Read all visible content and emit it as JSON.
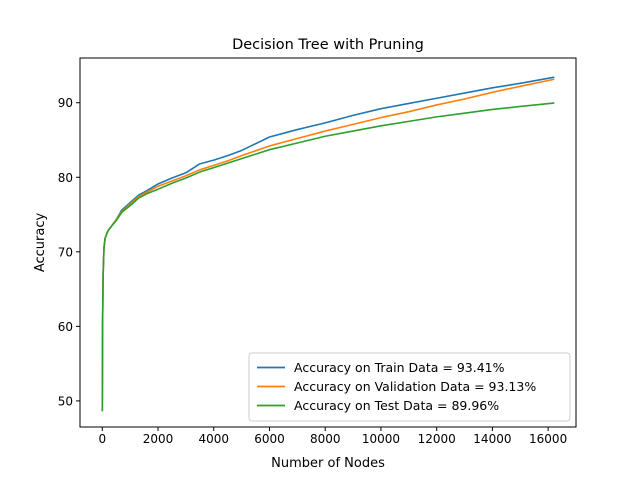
{
  "chart_data": {
    "type": "line",
    "title": "Decision Tree with Pruning",
    "xlabel": "Number of Nodes",
    "ylabel": "Accuracy",
    "xlim": [
      -800,
      17000
    ],
    "ylim": [
      46.5,
      96.0
    ],
    "xticks": [
      0,
      2000,
      4000,
      6000,
      8000,
      10000,
      12000,
      14000,
      16000
    ],
    "yticks": [
      50,
      60,
      70,
      80,
      90
    ],
    "legend_position": "lower-right",
    "grid": false,
    "series": [
      {
        "name": "Accuracy on Train Data = 93.41%",
        "color": "#1f77b4",
        "x": [
          0,
          10,
          30,
          60,
          100,
          200,
          300,
          500,
          700,
          1000,
          1300,
          1600,
          2000,
          2500,
          3000,
          3500,
          4000,
          4500,
          5000,
          6000,
          7000,
          8000,
          9000,
          10000,
          11000,
          12000,
          13000,
          14000,
          15000,
          16200
        ],
        "y": [
          48.7,
          60.0,
          67.0,
          70.5,
          71.8,
          72.8,
          73.3,
          74.3,
          75.6,
          76.6,
          77.6,
          78.2,
          79.1,
          79.9,
          80.6,
          81.8,
          82.3,
          82.9,
          83.6,
          85.4,
          86.4,
          87.3,
          88.3,
          89.2,
          89.9,
          90.6,
          91.3,
          92.0,
          92.6,
          93.41
        ]
      },
      {
        "name": "Accuracy on Validation Data = 93.13%",
        "color": "#ff7f0e",
        "x": [
          0,
          10,
          30,
          60,
          100,
          200,
          300,
          500,
          700,
          1000,
          1300,
          1600,
          2000,
          2500,
          3000,
          3500,
          4000,
          4500,
          5000,
          6000,
          7000,
          8000,
          9000,
          10000,
          11000,
          12000,
          13000,
          14000,
          15000,
          16200
        ],
        "y": [
          48.7,
          60.0,
          67.0,
          70.5,
          71.8,
          72.8,
          73.3,
          74.3,
          75.4,
          76.4,
          77.4,
          78.0,
          78.8,
          79.5,
          80.2,
          81.0,
          81.6,
          82.2,
          82.9,
          84.2,
          85.2,
          86.2,
          87.1,
          88.0,
          88.8,
          89.7,
          90.5,
          91.4,
          92.2,
          93.13
        ]
      },
      {
        "name": "Accuracy on Test Data = 89.96%",
        "color": "#2ca02c",
        "x": [
          0,
          10,
          30,
          60,
          100,
          200,
          300,
          500,
          700,
          1000,
          1300,
          1600,
          2000,
          2500,
          3000,
          3500,
          4000,
          4500,
          5000,
          6000,
          7000,
          8000,
          9000,
          10000,
          11000,
          12000,
          13000,
          14000,
          15000,
          16200
        ],
        "y": [
          48.7,
          60.0,
          67.0,
          70.5,
          71.8,
          72.8,
          73.3,
          74.2,
          75.3,
          76.2,
          77.2,
          77.8,
          78.4,
          79.2,
          79.9,
          80.7,
          81.3,
          81.9,
          82.5,
          83.7,
          84.6,
          85.5,
          86.2,
          86.9,
          87.5,
          88.1,
          88.6,
          89.1,
          89.5,
          89.96
        ]
      }
    ]
  }
}
